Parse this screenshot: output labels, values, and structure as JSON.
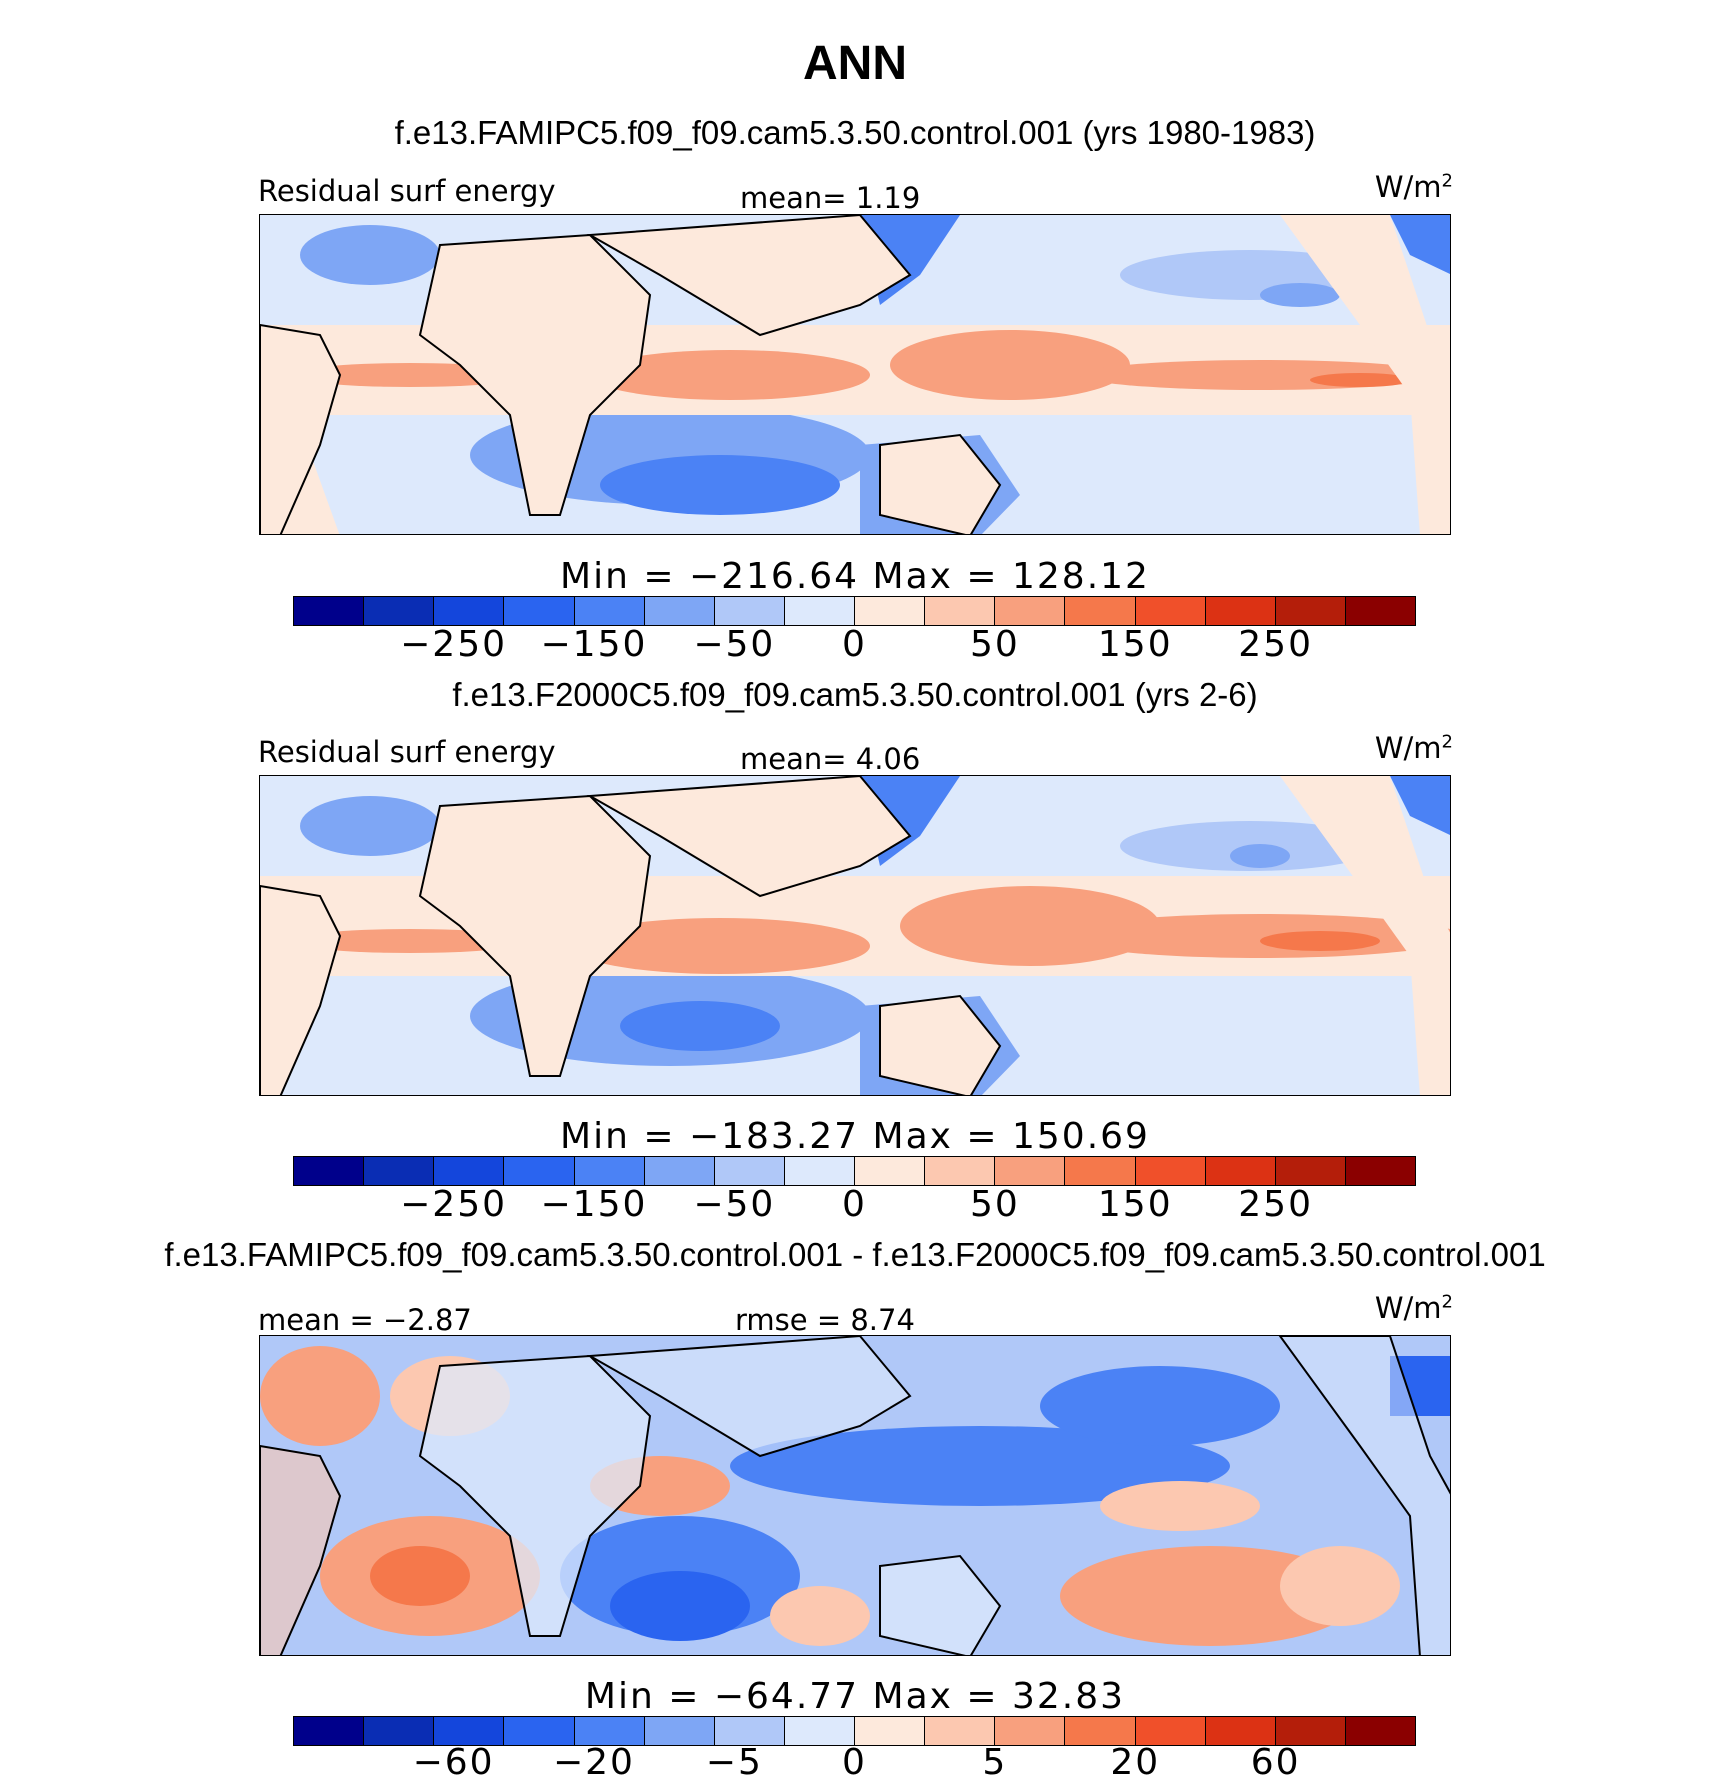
{
  "title": "ANN",
  "colors": [
    "#00008b",
    "#0a2db4",
    "#1446dc",
    "#2a64f0",
    "#4b82f5",
    "#7ea6f5",
    "#b0c8f8",
    "#dde9fc",
    "#fde9dc",
    "#fcc8b0",
    "#f8a07e",
    "#f5784b",
    "#f0502a",
    "#dc3214",
    "#b41e0a",
    "#8b0000"
  ],
  "panels": [
    {
      "case_title": "f.e13.FAMIPC5.f09_f09.cam5.3.50.control.001 (yrs 1980-1983)",
      "left_label": "Residual surf energy",
      "center_label": "mean=   1.19",
      "units": "W/m",
      "units_sup": "2",
      "minmax": "Min  =  −216.64  Max  =  128.12",
      "ticks": [
        "−250",
        "−150",
        "−50",
        "0",
        "50",
        "150",
        "250"
      ]
    },
    {
      "case_title": "f.e13.F2000C5.f09_f09.cam5.3.50.control.001 (yrs 2-6)",
      "left_label": "Residual surf energy",
      "center_label": "mean=   4.06",
      "units": "W/m",
      "units_sup": "2",
      "minmax": "Min  =  −183.27  Max  =  150.69",
      "ticks": [
        "−250",
        "−150",
        "−50",
        "0",
        "50",
        "150",
        "250"
      ]
    },
    {
      "case_title": "f.e13.FAMIPC5.f09_f09.cam5.3.50.control.001 - f.e13.F2000C5.f09_f09.cam5.3.50.control.001",
      "left_label": "mean  =   −2.87",
      "center_label": "rmse  =   8.74",
      "units": "W/m",
      "units_sup": "2",
      "minmax": "Min  =  −64.77  Max  =   32.83",
      "ticks": [
        "−60",
        "−20",
        "−5",
        "0",
        "5",
        "20",
        "60"
      ]
    }
  ]
}
